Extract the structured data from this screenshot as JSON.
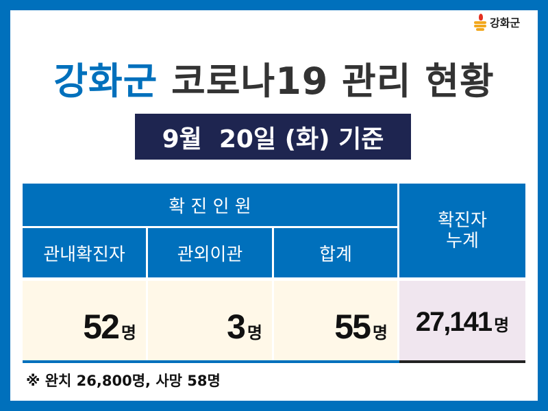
{
  "logo": {
    "text": "강화군",
    "icon": "ganghwa-flame-logo-icon"
  },
  "title": {
    "highlight": "강화군",
    "rest": "코로나19 관리 현황"
  },
  "date_label": "9월  20일 (화) 기준",
  "table": {
    "group_header": "확 진 인 원",
    "columns": [
      "관내확진자",
      "관외이관",
      "합계"
    ],
    "cumulative_header": "확진자\n누계",
    "values": [
      {
        "number": "52",
        "unit": "명"
      },
      {
        "number": "3",
        "unit": "명"
      },
      {
        "number": "55",
        "unit": "명"
      }
    ],
    "cumulative": {
      "number": "27,141",
      "unit": "명"
    }
  },
  "footnote": "※ 완치 26,800명, 사망 58명",
  "colors": {
    "brand_blue": "#0070bc",
    "navy": "#1e2550",
    "cream": "#fff8e8",
    "lavender": "#f0e6ef"
  }
}
